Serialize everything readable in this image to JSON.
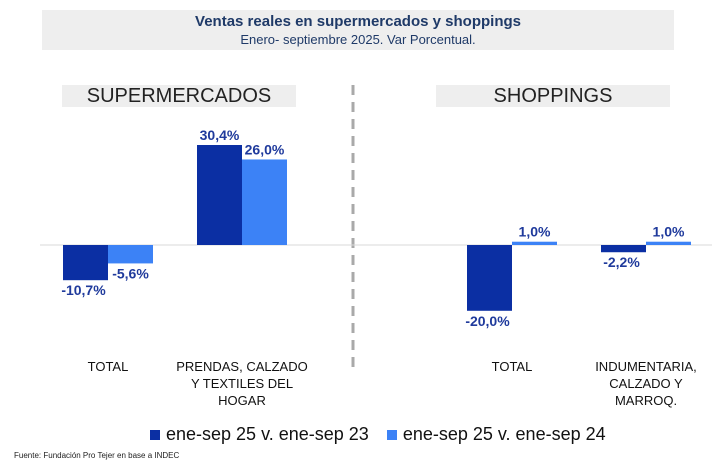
{
  "chart_data": {
    "type": "bar",
    "title": "Ventas reales en supermercados y shoppings",
    "subtitle": "Enero- septiembre 2025. Var Porcentual.",
    "groups": [
      "SUPERMERCADOS",
      "SHOPPINGS"
    ],
    "categories": [
      {
        "group": "SUPERMERCADOS",
        "label_lines": [
          "TOTAL"
        ]
      },
      {
        "group": "SUPERMERCADOS",
        "label_lines": [
          "PRENDAS, CALZADO",
          "Y TEXTILES DEL",
          "HOGAR"
        ]
      },
      {
        "group": "SHOPPINGS",
        "label_lines": [
          "TOTAL"
        ]
      },
      {
        "group": "SHOPPINGS",
        "label_lines": [
          "INDUMENTARIA,",
          "CALZADO Y",
          "MARROQ."
        ]
      }
    ],
    "series": [
      {
        "name": "ene-sep 25 v. ene-sep 23",
        "color": "#0b2fa3",
        "values": [
          -10.7,
          30.4,
          -20.0,
          -2.2
        ],
        "labels": [
          "-10,7%",
          "30,4%",
          "-20,0%",
          "-2,2%"
        ]
      },
      {
        "name": "ene-sep 25 v. ene-sep 24",
        "color": "#3c82f6",
        "values": [
          -5.6,
          26.0,
          1.0,
          1.0
        ],
        "labels": [
          "-5,6%",
          "26,0%",
          "1,0%",
          "1,0%"
        ]
      }
    ],
    "ylim": [
      -25,
      35
    ],
    "unit": "%"
  },
  "source": "Fuente: Fundación Pro Tejer en base a INDEC"
}
